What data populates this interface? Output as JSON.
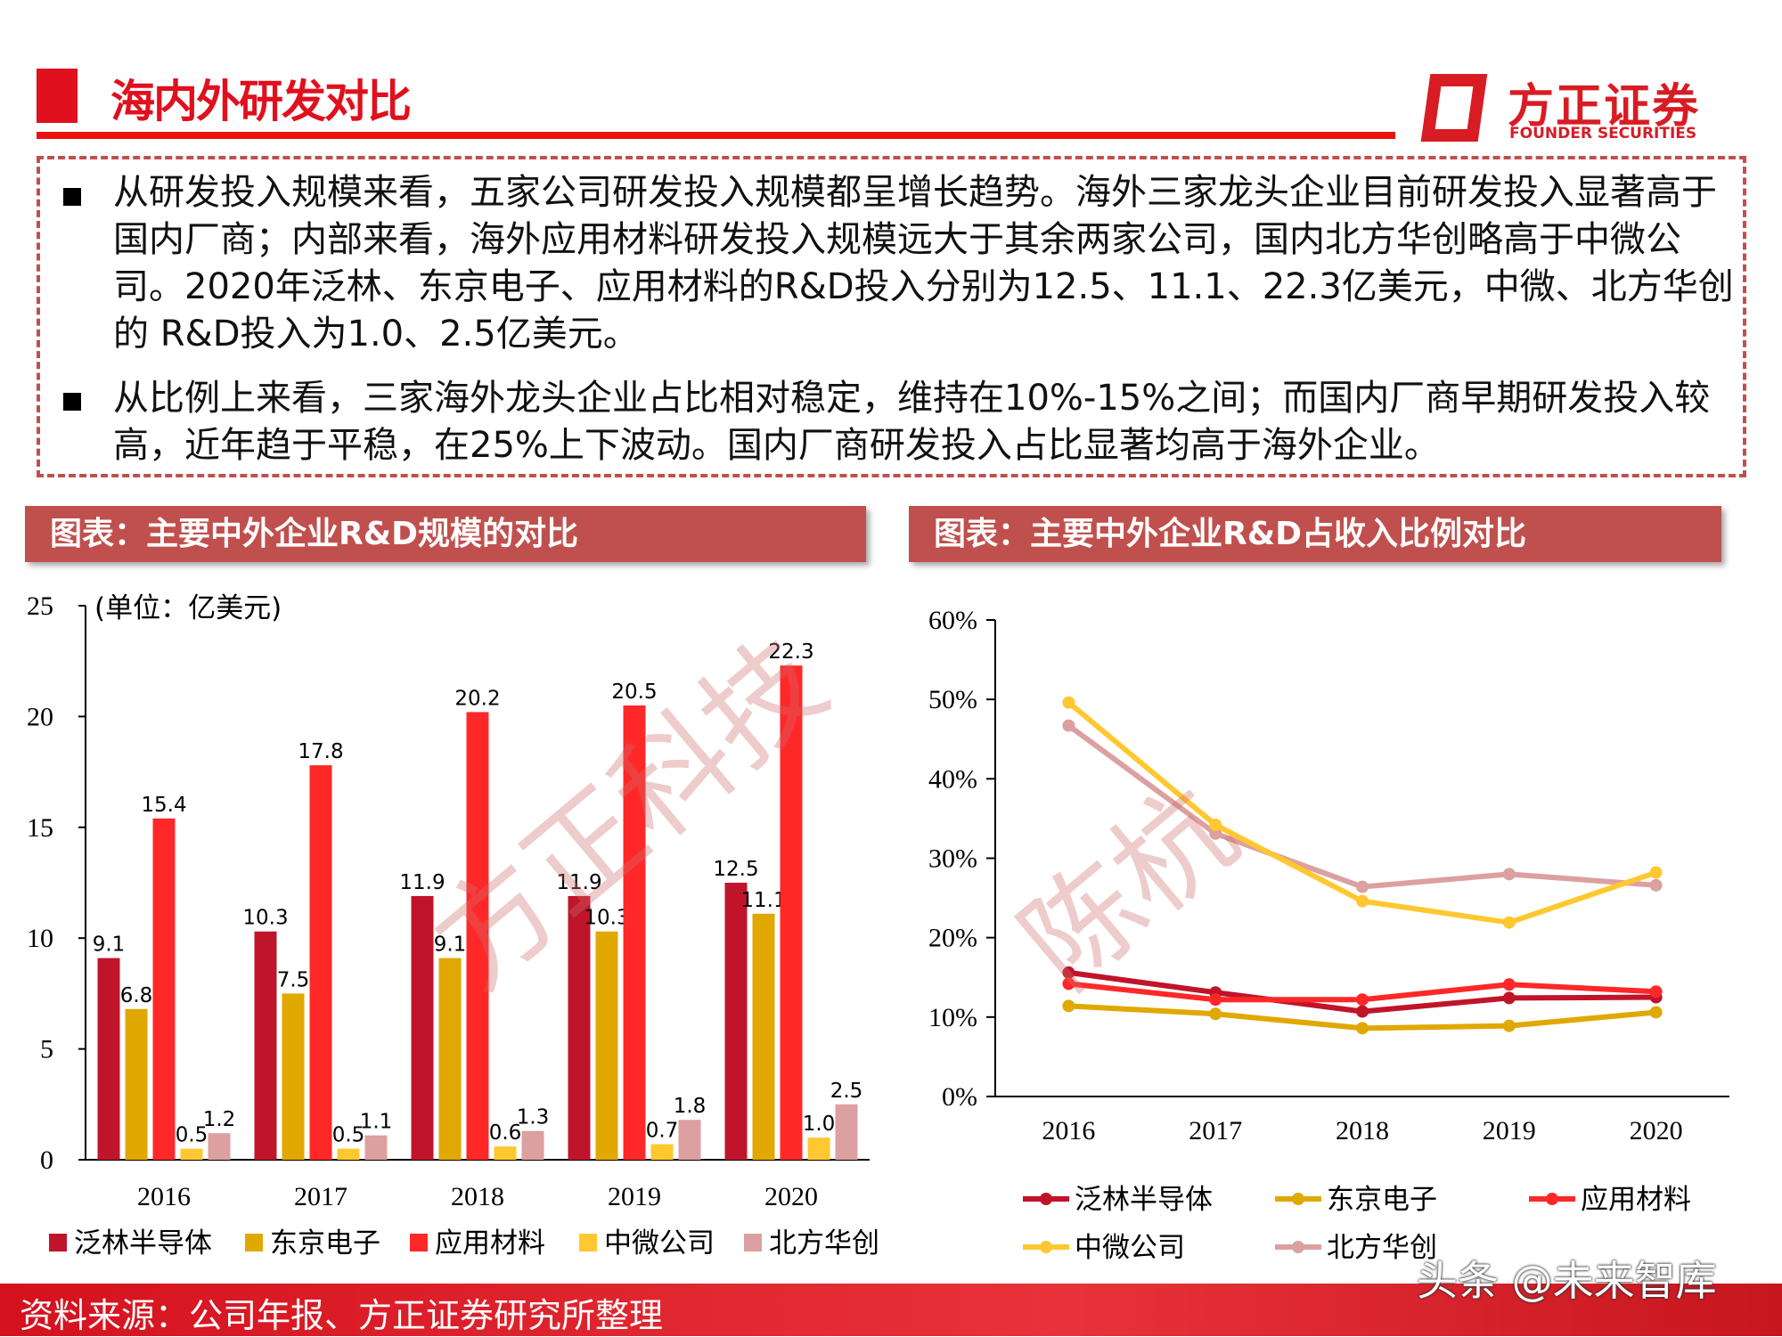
{
  "header": {
    "title": "海内外研发对比",
    "logo_cn": "方正证券",
    "logo_en": "FOUNDER SECURITIES"
  },
  "summary": {
    "paragraphs": [
      "从研发投入规模来看，五家公司研发投入规模都呈增长趋势。海外三家龙头企业目前研发投入显著高于国内厂商；内部来看，海外应用材料研发投入规模远大于其余两家公司，国内北方华创略高于中微公司。2020年泛林、东京电子、应用材料的R&D投入分别为12.5、11.1、22.3亿美元，中微、北方华创的 R&D投入为1.0、2.5亿美元。",
      "从比例上来看，三家海外龙头企业占比相对稳定，维持在10%-15%之间；而国内厂商早期研发投入较高，近年趋于平稳，在25%上下波动。国内厂商研发投入占比显著均高于海外企业。"
    ]
  },
  "footer": {
    "source": "资料来源：公司年报、方正证券研究所整理",
    "watermark": "头条 @未来智库"
  },
  "watermarks": [
    "方正科技",
    "陈杭"
  ],
  "colors": {
    "泛林半导体": "#c0142a",
    "东京电子": "#e0a800",
    "应用材料": "#ff2828",
    "中微公司": "#ffc830",
    "北方华创": "#dca0a0",
    "header_bg": "#c0504d",
    "accent": "#e0101e"
  },
  "chart_data": [
    {
      "type": "bar",
      "title": "图表：主要中外企业R&D规模的对比",
      "unit_label": "(单位：亿美元)",
      "categories": [
        "2016",
        "2017",
        "2018",
        "2019",
        "2020"
      ],
      "ylim": [
        0,
        25
      ],
      "yticks": [
        "0",
        "5",
        "10",
        "15",
        "20",
        "25"
      ],
      "legend_position": "bottom",
      "series": [
        {
          "name": "泛林半导体",
          "values": [
            9.1,
            10.3,
            11.9,
            11.9,
            12.5
          ],
          "labels": [
            "9.1",
            "10.3",
            "11.9",
            "11.9",
            "12.5"
          ]
        },
        {
          "name": "东京电子",
          "values": [
            6.8,
            7.5,
            9.1,
            10.3,
            11.1
          ],
          "labels": [
            "6.8",
            "7.5",
            "9.1",
            "10.3",
            "11.1"
          ]
        },
        {
          "name": "应用材料",
          "values": [
            15.4,
            17.8,
            20.2,
            20.5,
            22.3
          ],
          "labels": [
            "15.4",
            "17.8",
            "20.2",
            "20.5",
            "22.3"
          ]
        },
        {
          "name": "中微公司",
          "values": [
            0.5,
            0.5,
            0.6,
            0.7,
            1.0
          ],
          "labels": [
            "0.5",
            "0.5",
            "0.6",
            "0.7",
            "1.0"
          ]
        },
        {
          "name": "北方华创",
          "values": [
            1.2,
            1.1,
            1.3,
            1.8,
            2.5
          ],
          "labels": [
            "1.2",
            "1.1",
            "1.3",
            "1.8",
            "2.5"
          ]
        }
      ]
    },
    {
      "type": "line",
      "title": "图表：主要中外企业R&D占收入比例对比",
      "categories": [
        "2016",
        "2017",
        "2018",
        "2019",
        "2020"
      ],
      "ylim": [
        0,
        60
      ],
      "yticks": [
        "0%",
        "10%",
        "20%",
        "30%",
        "40%",
        "50%",
        "60%"
      ],
      "legend_position": "bottom",
      "series": [
        {
          "name": "泛林半导体",
          "values": [
            15.6,
            13.1,
            10.7,
            12.4,
            12.5
          ]
        },
        {
          "name": "东京电子",
          "values": [
            11.4,
            10.4,
            8.6,
            8.9,
            10.6
          ]
        },
        {
          "name": "应用材料",
          "values": [
            14.2,
            12.2,
            12.2,
            14.1,
            13.2
          ]
        },
        {
          "name": "中微公司",
          "values": [
            49.6,
            34.2,
            24.6,
            21.9,
            28.2
          ]
        },
        {
          "name": "北方华创",
          "values": [
            46.7,
            33.1,
            26.4,
            28.0,
            26.6
          ]
        }
      ]
    }
  ]
}
